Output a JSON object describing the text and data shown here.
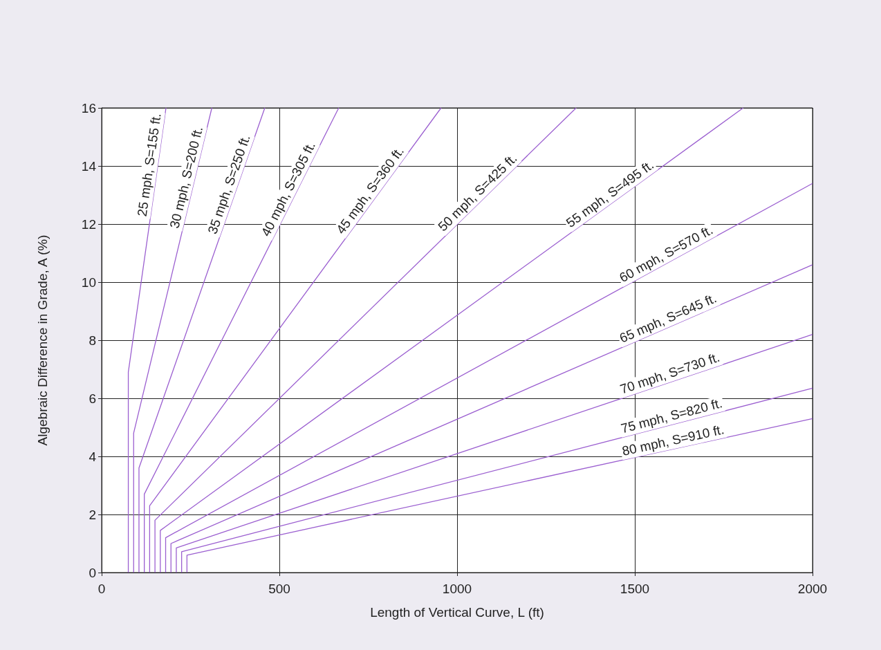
{
  "chart_data": {
    "type": "line",
    "xlabel": "Length of Vertical Curve, L (ft)",
    "ylabel": "Algebraic Difference in Grade, A (%)",
    "xlim": [
      0,
      2000
    ],
    "xticks": [
      0,
      500,
      1000,
      1500,
      2000
    ],
    "ylim": [
      0,
      16
    ],
    "yticks": [
      0,
      2,
      4,
      6,
      8,
      10,
      12,
      14,
      16
    ],
    "grid": true,
    "legend": false,
    "marker": "none",
    "line_style": "solid",
    "series": [
      {
        "name": "25 mph, S=155 ft.",
        "color": "#9b5fd0",
        "x": [
          75,
          75,
          181
        ],
        "values": [
          0,
          6.9,
          16
        ]
      },
      {
        "name": "30 mph, S=200 ft.",
        "color": "#9b5fd0",
        "x": [
          90,
          90,
          310
        ],
        "values": [
          0,
          4.8,
          16
        ]
      },
      {
        "name": "35 mph, S=250 ft.",
        "color": "#9b5fd0",
        "x": [
          105,
          105,
          459
        ],
        "values": [
          0,
          3.6,
          16
        ]
      },
      {
        "name": "40 mph, S=305 ft.",
        "color": "#9b5fd0",
        "x": [
          120,
          120,
          667
        ],
        "values": [
          0,
          2.7,
          16
        ]
      },
      {
        "name": "45 mph, S=360 ft.",
        "color": "#9b5fd0",
        "x": [
          135,
          135,
          955
        ],
        "values": [
          0,
          2.3,
          16
        ]
      },
      {
        "name": "50 mph, S=425 ft.",
        "color": "#9b5fd0",
        "x": [
          150,
          150,
          1335
        ],
        "values": [
          0,
          1.8,
          16
        ]
      },
      {
        "name": "55 mph, S=495 ft.",
        "color": "#9b5fd0",
        "x": [
          165,
          165,
          1805
        ],
        "values": [
          0,
          1.45,
          16
        ]
      },
      {
        "name": "60 mph, S=570 ft.",
        "color": "#9b5fd0",
        "x": [
          180,
          180,
          2000
        ],
        "values": [
          0,
          1.2,
          13.4
        ]
      },
      {
        "name": "65 mph, S=645 ft.",
        "color": "#9b5fd0",
        "x": [
          195,
          195,
          2000
        ],
        "values": [
          0,
          1.0,
          10.6
        ]
      },
      {
        "name": "70 mph, S=730 ft.",
        "color": "#9b5fd0",
        "x": [
          210,
          210,
          2000
        ],
        "values": [
          0,
          0.85,
          8.2
        ]
      },
      {
        "name": "75 mph, S=820 ft.",
        "color": "#9b5fd0",
        "x": [
          225,
          225,
          2000
        ],
        "values": [
          0,
          0.72,
          6.35
        ]
      },
      {
        "name": "80 mph, S=910 ft.",
        "color": "#9b5fd0",
        "x": [
          240,
          240,
          2000
        ],
        "values": [
          0,
          0.6,
          5.3
        ]
      }
    ]
  }
}
